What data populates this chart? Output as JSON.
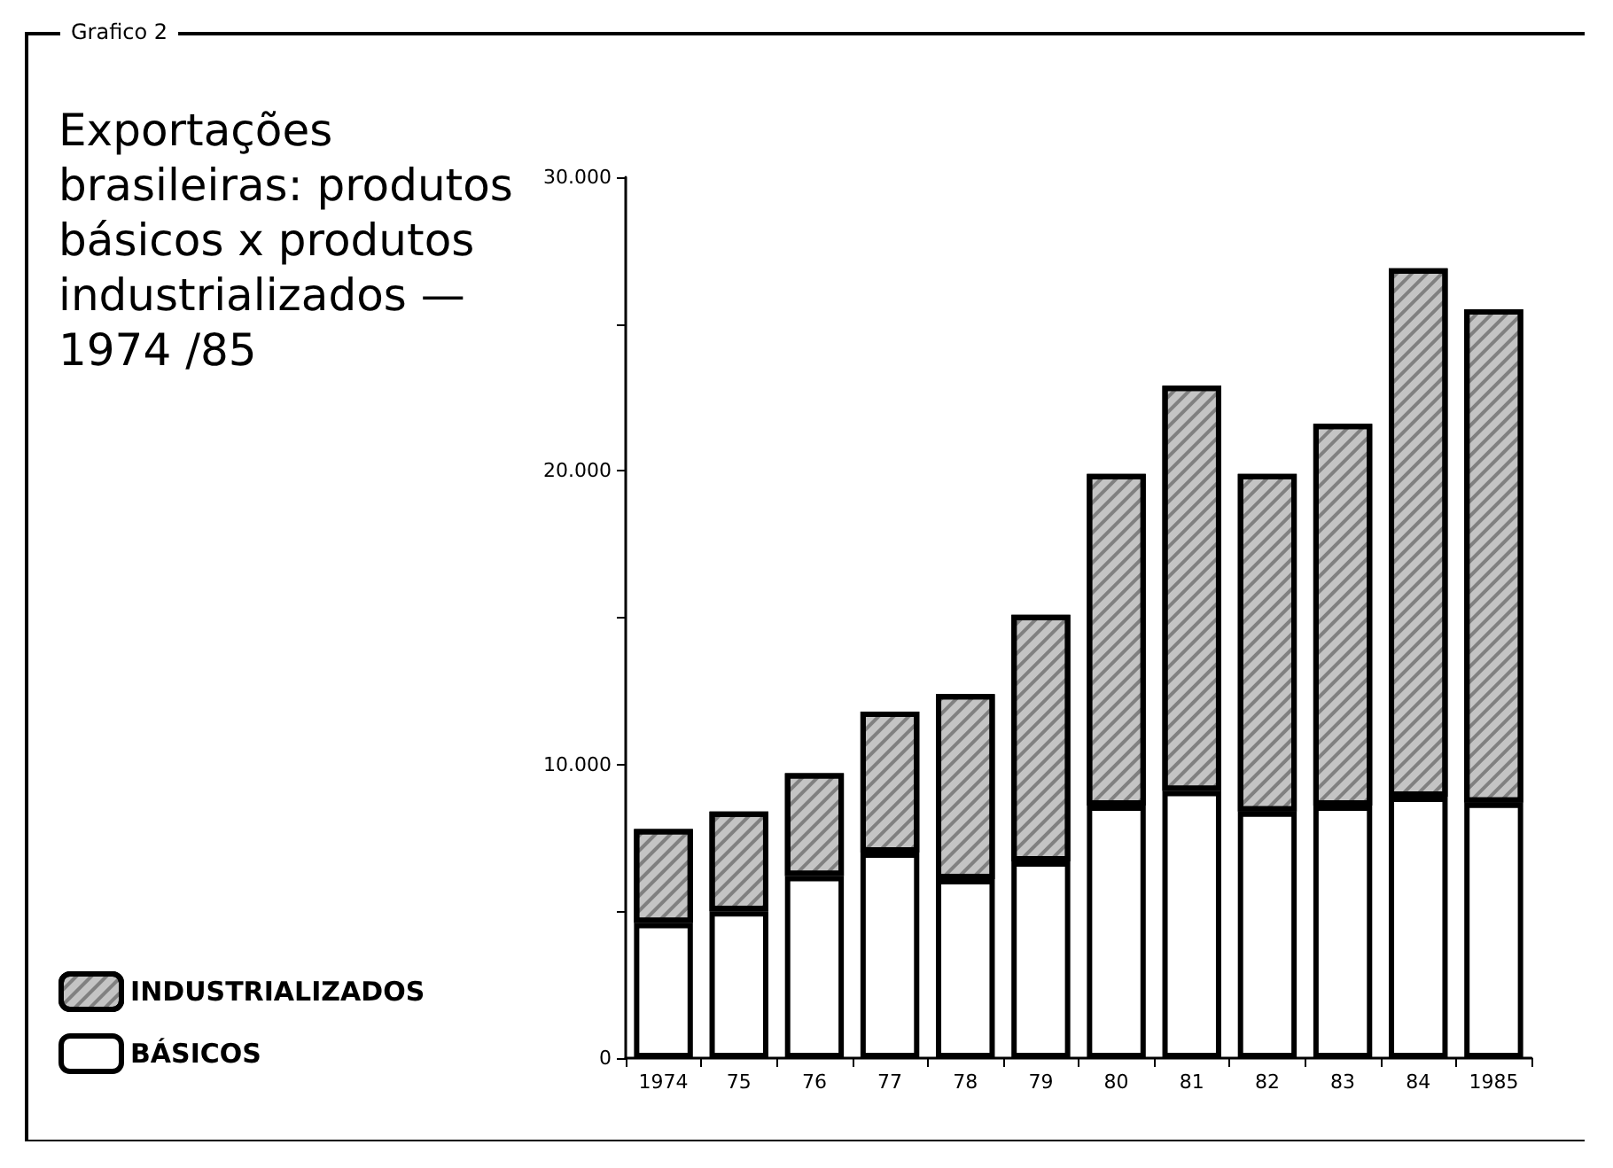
{
  "chart_data": {
    "type": "bar",
    "stacked": true,
    "title": "Exportações brasileiras: produtos básicos x produtos industrializados — 1974 /85",
    "annotations": [
      "Grafico 2"
    ],
    "categories": [
      "1974",
      "75",
      "76",
      "77",
      "78",
      "79",
      "80",
      "81",
      "82",
      "83",
      "84",
      "1985"
    ],
    "series": [
      {
        "name": "BÁSICOS",
        "color": "#ffffff",
        "values": [
          4600,
          5000,
          6200,
          7000,
          6100,
          6700,
          8600,
          9100,
          8400,
          8600,
          8900,
          8700
        ]
      },
      {
        "name": "INDUSTRIALIZADOS",
        "color": "#c4c4c4",
        "values": [
          3200,
          3400,
          3500,
          4800,
          6300,
          8400,
          11300,
          13800,
          11500,
          13000,
          18000,
          16800
        ]
      }
    ],
    "ylim": [
      0,
      30000
    ],
    "yticks": [
      0,
      {
        "value": 5000,
        "label": null
      },
      {
        "value": 10000,
        "label": "10.000"
      },
      {
        "value": 15000,
        "label": null
      },
      {
        "value": 20000,
        "label": "20.000"
      },
      {
        "value": 25000,
        "label": null
      },
      {
        "value": 30000,
        "label": "30.000"
      }
    ],
    "grid": false,
    "legend": "bottom left"
  }
}
